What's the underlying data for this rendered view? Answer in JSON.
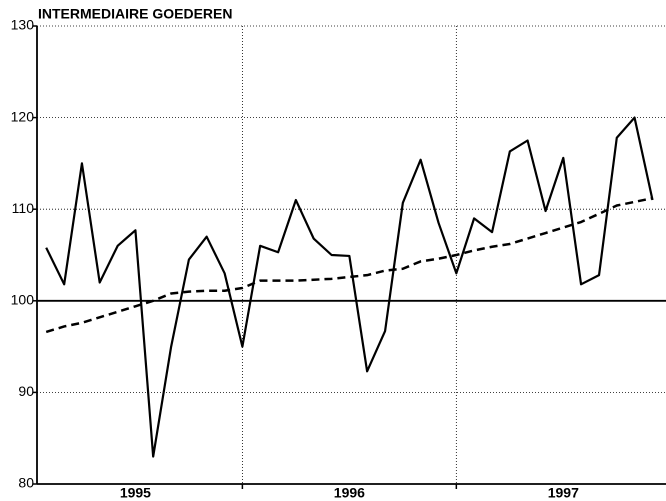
{
  "chart_data": {
    "type": "line",
    "title": "INTERMEDIAIRE GOEDEREN",
    "x": [
      1995.083,
      1995.167,
      1995.25,
      1995.333,
      1995.417,
      1995.5,
      1995.583,
      1995.667,
      1995.75,
      1995.833,
      1995.917,
      1996,
      1996.083,
      1996.167,
      1996.25,
      1996.333,
      1996.417,
      1996.5,
      1996.583,
      1996.667,
      1996.75,
      1996.833,
      1996.917,
      1997,
      1997.083,
      1997.167,
      1997.25,
      1997.333,
      1997.417,
      1997.5,
      1997.583,
      1997.667,
      1997.75,
      1997.833,
      1997.917
    ],
    "series": [
      {
        "color": "#000000",
        "dashed": false,
        "values": [
          105.8,
          101.8,
          115,
          102,
          106,
          107.7,
          83,
          95,
          104.5,
          107,
          103,
          95,
          106,
          105.3,
          111,
          106.8,
          105,
          104.9,
          92.3,
          96.7,
          110.7,
          115.4,
          108.5,
          103,
          109,
          107.5,
          116.3,
          117.5,
          109.8,
          115.6,
          101.8,
          102.8,
          117.8,
          120,
          111
        ]
      },
      {
        "color": "#000000",
        "dashed": true,
        "values": [
          96.6,
          97.2,
          97.6,
          98.2,
          98.8,
          99.4,
          100.0,
          100.8,
          101.0,
          101.1,
          101.1,
          101.4,
          102.2,
          102.2,
          102.2,
          102.3,
          102.4,
          102.6,
          102.8,
          103.3,
          103.5,
          104.3,
          104.6,
          105.0,
          105.5,
          105.9,
          106.2,
          106.8,
          107.4,
          108.0,
          108.6,
          109.5,
          110.4,
          110.8,
          111.2
        ]
      }
    ],
    "xlim": [
      1995.04,
      1997.98
    ],
    "xticks": [
      {
        "value": 1995.5,
        "label": "1995"
      },
      {
        "value": 1996.5,
        "label": "1996"
      },
      {
        "value": 1997.5,
        "label": "1997"
      }
    ],
    "xgrid": [
      1996,
      1997
    ],
    "ylim": [
      80,
      130
    ],
    "yticks": [
      80,
      90,
      100,
      110,
      120,
      130
    ],
    "baseline": 100,
    "grid": true
  }
}
